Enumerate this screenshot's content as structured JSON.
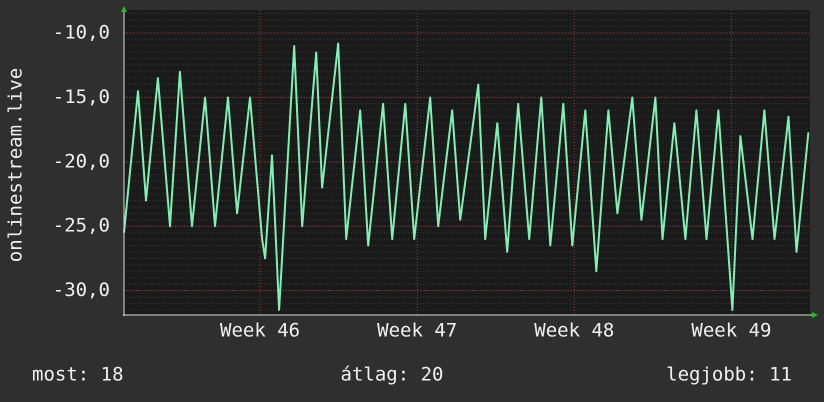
{
  "chart_data": {
    "type": "line",
    "y_label": "onlinestream.live",
    "x": [
      45.134,
      45.223,
      45.274,
      45.35,
      45.427,
      45.49,
      45.567,
      45.65,
      45.713,
      45.796,
      45.854,
      45.936,
      46.013,
      46.032,
      46.076,
      46.121,
      46.217,
      46.268,
      46.357,
      46.395,
      46.497,
      46.548,
      46.637,
      46.688,
      46.783,
      46.841,
      46.924,
      46.981,
      47.083,
      47.134,
      47.223,
      47.274,
      47.389,
      47.433,
      47.51,
      47.573,
      47.643,
      47.713,
      47.79,
      47.847,
      47.93,
      47.987,
      48.07,
      48.14,
      48.217,
      48.274,
      48.369,
      48.427,
      48.516,
      48.561,
      48.637,
      48.707,
      48.777,
      48.841,
      48.917,
      49.006,
      49.057,
      49.134,
      49.21,
      49.274,
      49.363,
      49.414,
      49.49
    ],
    "series": [
      {
        "color": "#80f0b4",
        "values": [
          -25.5,
          -14.5,
          -23,
          -13.5,
          -25,
          -13,
          -25,
          -15,
          -25,
          -15,
          -24,
          -15,
          -26,
          -27.5,
          -19.5,
          -31.5,
          -11,
          -25,
          -11.5,
          -22,
          -10.8,
          -26,
          -16,
          -26.5,
          -15.5,
          -26,
          -15.5,
          -26,
          -15,
          -25,
          -16,
          -24.5,
          -14,
          -26,
          -17,
          -27,
          -15.5,
          -26,
          -15,
          -26.5,
          -15.5,
          -26.5,
          -16,
          -28.5,
          -16,
          -24,
          -15,
          -24.5,
          -15,
          -26,
          -17,
          -26,
          -16,
          -26,
          -16,
          -31.5,
          -18,
          -26,
          -16,
          -26,
          -16.5,
          -27,
          -17.7
        ]
      }
    ],
    "xlim": [
      45.134,
      49.5
    ],
    "xticks": [
      {
        "value": 46,
        "label": "Week 46"
      },
      {
        "value": 47,
        "label": "Week 47"
      },
      {
        "value": 48,
        "label": "Week 48"
      },
      {
        "value": 49,
        "label": "Week 49"
      }
    ],
    "ylim": [
      -31.9,
      -8.2
    ],
    "yticks": [
      {
        "value": -10,
        "label": "-10,0"
      },
      {
        "value": -15,
        "label": "-15,0"
      },
      {
        "value": -20,
        "label": "-20,0"
      },
      {
        "value": -25,
        "label": "-25,0"
      },
      {
        "value": -30,
        "label": "-30,0"
      }
    ],
    "grid": true,
    "stats": [
      "most: 18",
      "átlag: 20",
      "legjobb: 11"
    ]
  }
}
